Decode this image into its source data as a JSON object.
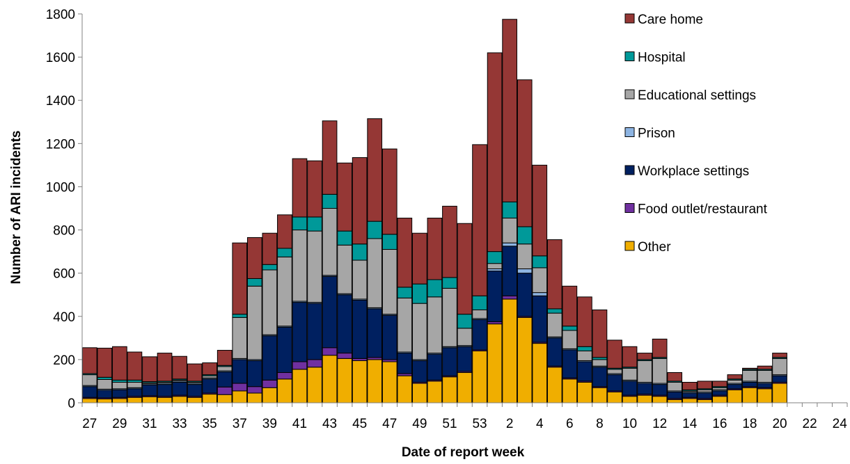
{
  "chart_data": {
    "type": "bar",
    "stacked": true,
    "title": "",
    "xlabel": "Date of report week",
    "ylabel": "Number of ARI incidents",
    "ylim": [
      0,
      1800
    ],
    "yticks": [
      0,
      200,
      400,
      600,
      800,
      1000,
      1200,
      1400,
      1600,
      1800
    ],
    "grid": false,
    "legend": "right",
    "categories": [
      "27",
      "28",
      "29",
      "30",
      "31",
      "32",
      "33",
      "34",
      "35",
      "36",
      "37",
      "38",
      "39",
      "40",
      "41",
      "42",
      "43",
      "44",
      "45",
      "46",
      "47",
      "48",
      "49",
      "50",
      "51",
      "52",
      "53",
      "1",
      "2",
      "3",
      "4",
      "5",
      "6",
      "7",
      "8",
      "9",
      "10",
      "11",
      "12",
      "13",
      "14",
      "15",
      "16",
      "17",
      "18",
      "19",
      "20",
      "21",
      "22",
      "23",
      "24"
    ],
    "tick_labels": [
      "27",
      "29",
      "31",
      "33",
      "35",
      "37",
      "39",
      "41",
      "43",
      "45",
      "47",
      "49",
      "51",
      "53",
      "2",
      "4",
      "6",
      "8",
      "10",
      "12",
      "14",
      "16",
      "18",
      "20",
      "22",
      "24"
    ],
    "series": [
      {
        "name": "Other",
        "color": "#F0AE00",
        "values": [
          20,
          18,
          20,
          25,
          28,
          25,
          30,
          25,
          40,
          38,
          55,
          45,
          70,
          110,
          155,
          165,
          220,
          205,
          195,
          200,
          190,
          125,
          90,
          100,
          120,
          140,
          240,
          365,
          480,
          395,
          275,
          165,
          110,
          95,
          70,
          50,
          30,
          35,
          30,
          15,
          20,
          15,
          30,
          60,
          70,
          65,
          90,
          0,
          0,
          0,
          0
        ]
      },
      {
        "name": "Food outlet/restaurant",
        "color": "#7030A0",
        "values": [
          5,
          5,
          5,
          5,
          5,
          5,
          5,
          5,
          5,
          35,
          35,
          30,
          35,
          30,
          35,
          35,
          35,
          25,
          10,
          10,
          10,
          10,
          5,
          5,
          5,
          5,
          5,
          10,
          15,
          5,
          5,
          5,
          5,
          5,
          5,
          5,
          5,
          5,
          5,
          5,
          5,
          5,
          5,
          5,
          5,
          5,
          5,
          0,
          0,
          0,
          0
        ]
      },
      {
        "name": "Workplace settings",
        "color": "#002060",
        "values": [
          50,
          35,
          35,
          35,
          50,
          55,
          60,
          55,
          65,
          70,
          110,
          120,
          205,
          210,
          275,
          260,
          330,
          270,
          270,
          225,
          205,
          95,
          100,
          120,
          130,
          115,
          140,
          235,
          230,
          200,
          215,
          130,
          130,
          90,
          90,
          75,
          65,
          50,
          50,
          30,
          20,
          25,
          20,
          20,
          20,
          20,
          30,
          0,
          0,
          0,
          0
        ]
      },
      {
        "name": "Prison",
        "color": "#8DB4E2",
        "values": [
          5,
          5,
          5,
          5,
          5,
          5,
          5,
          5,
          5,
          5,
          5,
          5,
          5,
          5,
          5,
          5,
          5,
          5,
          5,
          5,
          5,
          5,
          5,
          5,
          5,
          5,
          5,
          10,
          15,
          20,
          15,
          5,
          5,
          5,
          5,
          5,
          5,
          5,
          5,
          5,
          5,
          5,
          5,
          5,
          5,
          5,
          5,
          0,
          0,
          0,
          0
        ]
      },
      {
        "name": "Educational settings",
        "color": "#A6A6A6",
        "values": [
          50,
          45,
          30,
          25,
          5,
          5,
          5,
          5,
          10,
          20,
          190,
          340,
          300,
          320,
          330,
          330,
          310,
          225,
          180,
          320,
          300,
          250,
          260,
          260,
          270,
          80,
          40,
          25,
          115,
          115,
          115,
          110,
          85,
          45,
          30,
          20,
          55,
          100,
          115,
          40,
          5,
          10,
          10,
          15,
          50,
          55,
          75,
          0,
          0,
          0,
          0
        ]
      },
      {
        "name": "Hospital",
        "color": "#009999",
        "values": [
          5,
          10,
          10,
          10,
          5,
          5,
          5,
          5,
          5,
          5,
          15,
          35,
          25,
          40,
          60,
          65,
          65,
          65,
          75,
          80,
          70,
          50,
          90,
          80,
          50,
          65,
          65,
          55,
          75,
          80,
          55,
          20,
          20,
          20,
          10,
          5,
          5,
          5,
          5,
          5,
          5,
          5,
          5,
          5,
          5,
          5,
          5,
          0,
          0,
          0,
          0
        ]
      },
      {
        "name": "Care home",
        "color": "#953735",
        "values": [
          120,
          135,
          155,
          130,
          115,
          130,
          105,
          80,
          55,
          70,
          330,
          190,
          145,
          155,
          270,
          260,
          340,
          315,
          400,
          475,
          395,
          320,
          235,
          285,
          330,
          420,
          700,
          920,
          845,
          680,
          420,
          320,
          185,
          230,
          220,
          130,
          95,
          30,
          85,
          40,
          35,
          35,
          25,
          20,
          5,
          15,
          20,
          0,
          0,
          0,
          0
        ]
      }
    ]
  },
  "legend_items": [
    "Care home",
    "Hospital",
    "Educational settings",
    "Prison",
    "Workplace settings",
    "Food outlet/restaurant",
    "Other"
  ],
  "legend_colors": [
    "#953735",
    "#009999",
    "#A6A6A6",
    "#8DB4E2",
    "#002060",
    "#7030A0",
    "#F0AE00"
  ]
}
